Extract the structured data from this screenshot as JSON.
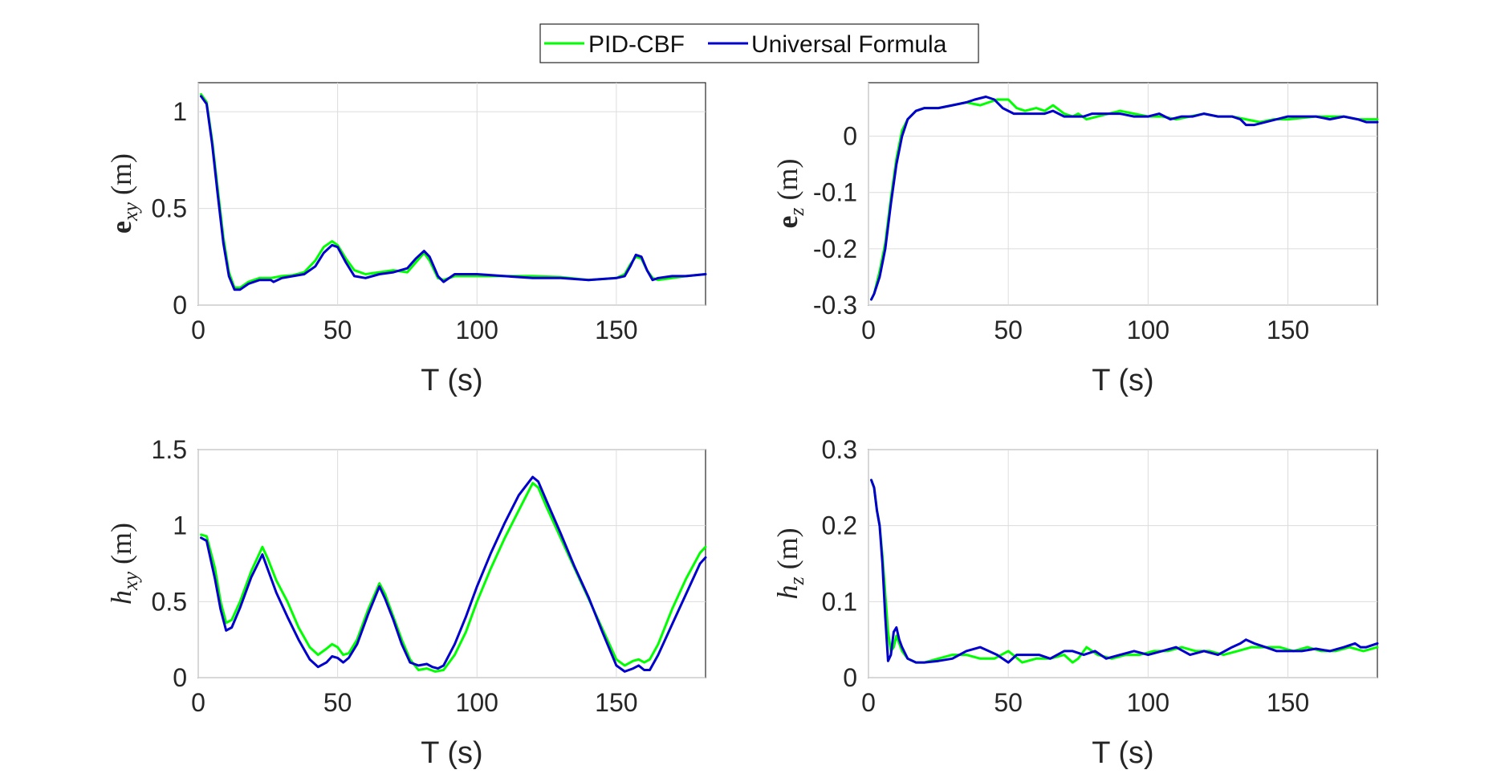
{
  "chart_data": {
    "legend": {
      "placement": "top-center",
      "entries": [
        {
          "name": "PID-CBF",
          "color": "#00ff00"
        },
        {
          "name": "Universal Formula",
          "color": "#0000cd"
        }
      ]
    },
    "subplots": [
      {
        "id": "exy",
        "type": "line",
        "ylabel_main": "e",
        "ylabel_sub": "xy",
        "ylabel_unit": " (m)",
        "xlabel": "T (s)",
        "xlim": [
          0,
          182
        ],
        "ylim": [
          0,
          1.15
        ],
        "xticks": [
          0,
          50,
          100,
          150
        ],
        "xtick_labels": [
          "0",
          "50",
          "100",
          "150"
        ],
        "yticks": [
          0,
          0.5,
          1
        ],
        "ytick_labels": [
          "0",
          "0.5",
          "1"
        ],
        "grid": true,
        "series": [
          {
            "name": "PID-CBF",
            "color": "#00ff00",
            "x": [
              1,
              3,
              5,
              7,
              9,
              11,
              13,
              15,
              18,
              22,
              26,
              30,
              34,
              38,
              42,
              45,
              48,
              50,
              53,
              56,
              60,
              65,
              70,
              75,
              78,
              81,
              83,
              86,
              88,
              92,
              100,
              110,
              120,
              130,
              140,
              150,
              153,
              155,
              157,
              159,
              161,
              163,
              165,
              170,
              175,
              182
            ],
            "y": [
              1.09,
              1.05,
              0.85,
              0.6,
              0.35,
              0.17,
              0.09,
              0.09,
              0.12,
              0.14,
              0.14,
              0.15,
              0.155,
              0.17,
              0.23,
              0.3,
              0.33,
              0.31,
              0.24,
              0.18,
              0.16,
              0.17,
              0.18,
              0.17,
              0.22,
              0.27,
              0.23,
              0.14,
              0.13,
              0.15,
              0.15,
              0.15,
              0.15,
              0.145,
              0.13,
              0.14,
              0.16,
              0.21,
              0.25,
              0.24,
              0.18,
              0.14,
              0.13,
              0.14,
              0.15,
              0.16
            ]
          },
          {
            "name": "Universal Formula",
            "color": "#0000cd",
            "x": [
              1,
              3,
              5,
              7,
              9,
              11,
              13,
              15,
              18,
              22,
              26,
              27,
              30,
              34,
              38,
              42,
              45,
              48,
              50,
              53,
              56,
              60,
              65,
              70,
              75,
              78,
              81,
              83,
              86,
              88,
              92,
              100,
              110,
              120,
              130,
              140,
              150,
              153,
              155,
              157,
              159,
              161,
              163,
              165,
              170,
              175,
              182
            ],
            "y": [
              1.08,
              1.04,
              0.83,
              0.57,
              0.32,
              0.15,
              0.08,
              0.08,
              0.11,
              0.13,
              0.13,
              0.12,
              0.14,
              0.15,
              0.16,
              0.2,
              0.27,
              0.31,
              0.3,
              0.22,
              0.15,
              0.14,
              0.16,
              0.17,
              0.19,
              0.24,
              0.28,
              0.25,
              0.15,
              0.12,
              0.16,
              0.16,
              0.15,
              0.14,
              0.14,
              0.13,
              0.14,
              0.15,
              0.2,
              0.26,
              0.25,
              0.18,
              0.13,
              0.14,
              0.15,
              0.15,
              0.16
            ]
          }
        ]
      },
      {
        "id": "ez",
        "type": "line",
        "ylabel_main": "e",
        "ylabel_sub": "z",
        "ylabel_unit": " (m)",
        "xlabel": "T (s)",
        "xlim": [
          0,
          182
        ],
        "ylim": [
          -0.3,
          0.095
        ],
        "xticks": [
          0,
          50,
          100,
          150
        ],
        "xtick_labels": [
          "0",
          "50",
          "100",
          "150"
        ],
        "yticks": [
          0,
          -0.1,
          -0.2,
          -0.3
        ],
        "ytick_labels": [
          "0",
          "-0.1",
          "-0.2",
          "-0.3"
        ],
        "grid": true,
        "series": [
          {
            "name": "PID-CBF",
            "color": "#00ff00",
            "x": [
              1,
              2,
              4,
              6,
              8,
              10,
              12,
              14,
              17,
              20,
              25,
              30,
              35,
              40,
              43,
              46,
              50,
              53,
              56,
              60,
              63,
              66,
              70,
              73,
              75,
              78,
              82,
              86,
              90,
              95,
              100,
              105,
              110,
              115,
              120,
              125,
              130,
              135,
              140,
              145,
              150,
              160,
              170,
              175,
              182
            ],
            "y": [
              -0.29,
              -0.28,
              -0.24,
              -0.19,
              -0.11,
              -0.04,
              0.01,
              0.03,
              0.045,
              0.05,
              0.05,
              0.055,
              0.06,
              0.055,
              0.06,
              0.065,
              0.065,
              0.05,
              0.045,
              0.05,
              0.045,
              0.055,
              0.04,
              0.035,
              0.04,
              0.03,
              0.035,
              0.04,
              0.045,
              0.04,
              0.035,
              0.035,
              0.03,
              0.035,
              0.04,
              0.035,
              0.035,
              0.03,
              0.025,
              0.03,
              0.03,
              0.035,
              0.035,
              0.03,
              0.03
            ]
          },
          {
            "name": "Universal Formula",
            "color": "#0000cd",
            "x": [
              1,
              2,
              4,
              6,
              8,
              10,
              12,
              14,
              17,
              20,
              25,
              30,
              35,
              38,
              42,
              45,
              48,
              52,
              56,
              60,
              63,
              66,
              70,
              73,
              77,
              80,
              85,
              90,
              95,
              100,
              104,
              108,
              112,
              116,
              120,
              125,
              130,
              133,
              135,
              138,
              142,
              146,
              150,
              155,
              160,
              165,
              170,
              175,
              178,
              182
            ],
            "y": [
              -0.29,
              -0.28,
              -0.25,
              -0.2,
              -0.12,
              -0.05,
              0.0,
              0.03,
              0.045,
              0.05,
              0.05,
              0.055,
              0.06,
              0.065,
              0.07,
              0.065,
              0.05,
              0.04,
              0.04,
              0.04,
              0.04,
              0.045,
              0.035,
              0.035,
              0.035,
              0.04,
              0.04,
              0.04,
              0.035,
              0.035,
              0.04,
              0.03,
              0.035,
              0.035,
              0.04,
              0.035,
              0.035,
              0.03,
              0.02,
              0.02,
              0.025,
              0.03,
              0.035,
              0.035,
              0.035,
              0.03,
              0.035,
              0.03,
              0.025,
              0.025
            ]
          }
        ]
      },
      {
        "id": "hxy",
        "type": "line",
        "ylabel_main": "h",
        "ylabel_sub": "xy",
        "ylabel_unit": " (m)",
        "xlabel": "T (s)",
        "xlim": [
          0,
          182
        ],
        "ylim": [
          0,
          1.5
        ],
        "xticks": [
          0,
          50,
          100,
          150
        ],
        "xtick_labels": [
          "0",
          "50",
          "100",
          "150"
        ],
        "yticks": [
          0,
          0.5,
          1,
          1.5
        ],
        "ytick_labels": [
          "0",
          "0.5",
          "1",
          "1.5"
        ],
        "grid": true,
        "series": [
          {
            "name": "PID-CBF",
            "color": "#00ff00",
            "x": [
              1,
              3,
              6,
              8,
              10,
              12,
              15,
              19,
              23,
              25,
              28,
              32,
              36,
              40,
              43,
              46,
              48,
              50,
              52,
              54,
              57,
              61,
              65,
              67,
              70,
              73,
              76,
              79,
              82,
              85,
              88,
              92,
              96,
              100,
              105,
              110,
              115,
              120,
              122,
              125,
              130,
              135,
              140,
              145,
              150,
              153,
              156,
              158,
              160,
              162,
              165,
              170,
              175,
              180,
              182
            ],
            "y": [
              0.94,
              0.93,
              0.72,
              0.5,
              0.36,
              0.38,
              0.5,
              0.7,
              0.86,
              0.78,
              0.64,
              0.5,
              0.33,
              0.2,
              0.15,
              0.19,
              0.22,
              0.2,
              0.15,
              0.16,
              0.25,
              0.45,
              0.62,
              0.55,
              0.4,
              0.25,
              0.12,
              0.05,
              0.06,
              0.04,
              0.05,
              0.15,
              0.3,
              0.5,
              0.72,
              0.92,
              1.1,
              1.28,
              1.25,
              1.12,
              0.92,
              0.72,
              0.52,
              0.32,
              0.12,
              0.08,
              0.11,
              0.12,
              0.1,
              0.12,
              0.22,
              0.45,
              0.65,
              0.82,
              0.86
            ]
          },
          {
            "name": "Universal Formula",
            "color": "#0000cd",
            "x": [
              1,
              3,
              6,
              8,
              10,
              12,
              15,
              19,
              23,
              25,
              28,
              32,
              36,
              40,
              43,
              46,
              48,
              50,
              52,
              54,
              57,
              61,
              65,
              67,
              70,
              73,
              76,
              79,
              82,
              84,
              86,
              88,
              92,
              96,
              100,
              105,
              110,
              115,
              120,
              122,
              125,
              130,
              135,
              140,
              145,
              150,
              153,
              156,
              158,
              160,
              162,
              165,
              170,
              175,
              180,
              182
            ],
            "y": [
              0.92,
              0.9,
              0.65,
              0.45,
              0.31,
              0.33,
              0.46,
              0.66,
              0.81,
              0.71,
              0.56,
              0.4,
              0.25,
              0.12,
              0.07,
              0.1,
              0.14,
              0.13,
              0.1,
              0.13,
              0.22,
              0.42,
              0.6,
              0.52,
              0.38,
              0.22,
              0.1,
              0.08,
              0.09,
              0.07,
              0.06,
              0.08,
              0.22,
              0.4,
              0.6,
              0.82,
              1.02,
              1.2,
              1.32,
              1.29,
              1.16,
              0.95,
              0.73,
              0.53,
              0.3,
              0.08,
              0.04,
              0.06,
              0.08,
              0.05,
              0.05,
              0.15,
              0.35,
              0.55,
              0.75,
              0.79
            ]
          }
        ]
      },
      {
        "id": "hz",
        "type": "line",
        "ylabel_main": "h",
        "ylabel_sub": "z",
        "ylabel_unit": " (m)",
        "xlabel": "T (s)",
        "xlim": [
          0,
          182
        ],
        "ylim": [
          0,
          0.3
        ],
        "xticks": [
          0,
          50,
          100,
          150
        ],
        "xtick_labels": [
          "0",
          "50",
          "100",
          "150"
        ],
        "yticks": [
          0,
          0.1,
          0.2,
          0.3
        ],
        "ytick_labels": [
          "0",
          "0.1",
          "0.2",
          "0.3"
        ],
        "grid": true,
        "series": [
          {
            "name": "PID-CBF",
            "color": "#00ff00",
            "x": [
              1,
              2,
              3,
              4,
              5,
              6,
              7,
              8,
              9,
              10,
              11,
              12,
              14,
              17,
              20,
              25,
              30,
              35,
              40,
              45,
              50,
              55,
              60,
              65,
              70,
              73,
              75,
              78,
              82,
              87,
              92,
              97,
              102,
              107,
              112,
              117,
              122,
              127,
              132,
              137,
              142,
              147,
              152,
              157,
              162,
              167,
              172,
              177,
              182
            ],
            "y": [
              0.26,
              0.25,
              0.22,
              0.2,
              0.16,
              0.11,
              0.06,
              0.035,
              0.04,
              0.055,
              0.045,
              0.035,
              0.025,
              0.02,
              0.02,
              0.025,
              0.03,
              0.03,
              0.025,
              0.025,
              0.035,
              0.02,
              0.025,
              0.025,
              0.03,
              0.02,
              0.025,
              0.04,
              0.03,
              0.025,
              0.03,
              0.03,
              0.035,
              0.035,
              0.04,
              0.035,
              0.035,
              0.03,
              0.035,
              0.04,
              0.04,
              0.04,
              0.035,
              0.04,
              0.035,
              0.035,
              0.04,
              0.035,
              0.04
            ]
          },
          {
            "name": "Universal Formula",
            "color": "#0000cd",
            "x": [
              1,
              2,
              3,
              4,
              5,
              6,
              7,
              8,
              9,
              10,
              11,
              12,
              14,
              17,
              20,
              25,
              30,
              35,
              40,
              43,
              46,
              50,
              53,
              57,
              61,
              65,
              70,
              73,
              77,
              81,
              85,
              90,
              95,
              100,
              105,
              110,
              115,
              120,
              125,
              130,
              133,
              135,
              138,
              142,
              146,
              150,
              155,
              160,
              165,
              170,
              174,
              176,
              178,
              182
            ],
            "y": [
              0.26,
              0.25,
              0.22,
              0.2,
              0.15,
              0.08,
              0.022,
              0.03,
              0.06,
              0.066,
              0.05,
              0.04,
              0.025,
              0.02,
              0.02,
              0.022,
              0.025,
              0.035,
              0.04,
              0.035,
              0.03,
              0.02,
              0.03,
              0.03,
              0.03,
              0.025,
              0.035,
              0.035,
              0.03,
              0.035,
              0.025,
              0.03,
              0.035,
              0.03,
              0.035,
              0.04,
              0.03,
              0.035,
              0.03,
              0.04,
              0.045,
              0.05,
              0.045,
              0.04,
              0.035,
              0.035,
              0.035,
              0.038,
              0.035,
              0.04,
              0.045,
              0.04,
              0.04,
              0.045
            ]
          }
        ]
      }
    ]
  }
}
